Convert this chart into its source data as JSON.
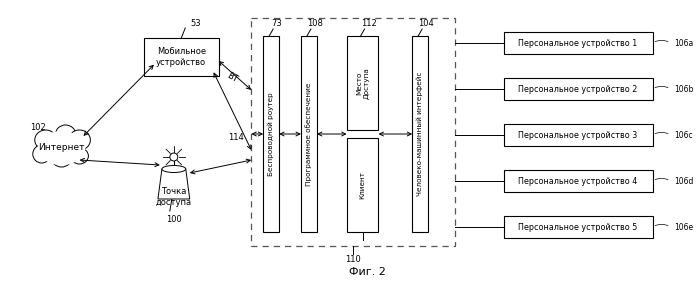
{
  "fig_caption": "Фиг. 2",
  "bg_color": "#ffffff",
  "internet_label": "Интернет",
  "internet_num": "102",
  "mobile_label": "Мобильное\nустройство",
  "mobile_num": "53",
  "access_point_label": "Точка\nдоступа",
  "access_point_num": "100",
  "wt_label": "ВТ",
  "num_114": "114",
  "dashed_box_num": "110",
  "wireless_router_label": "Беспроводной роутер",
  "wireless_router_num": "73",
  "software_label": "Программное обеспечение",
  "software_num": "108",
  "access_place_label": "Место\nДоступа",
  "access_place_num": "112",
  "client_label": "Клиент",
  "hmi_label": "Человеко-машинный интерфейс",
  "hmi_num": "104",
  "personal_devices": [
    {
      "label": "Персональное устройство 1",
      "num": "106a"
    },
    {
      "label": "Персональное устройство 2",
      "num": "106b"
    },
    {
      "label": "Персональное устройство 3",
      "num": "106c"
    },
    {
      "label": "Персональное устройство 4",
      "num": "106d"
    },
    {
      "label": "Персональное устройство 5",
      "num": "106e"
    }
  ]
}
